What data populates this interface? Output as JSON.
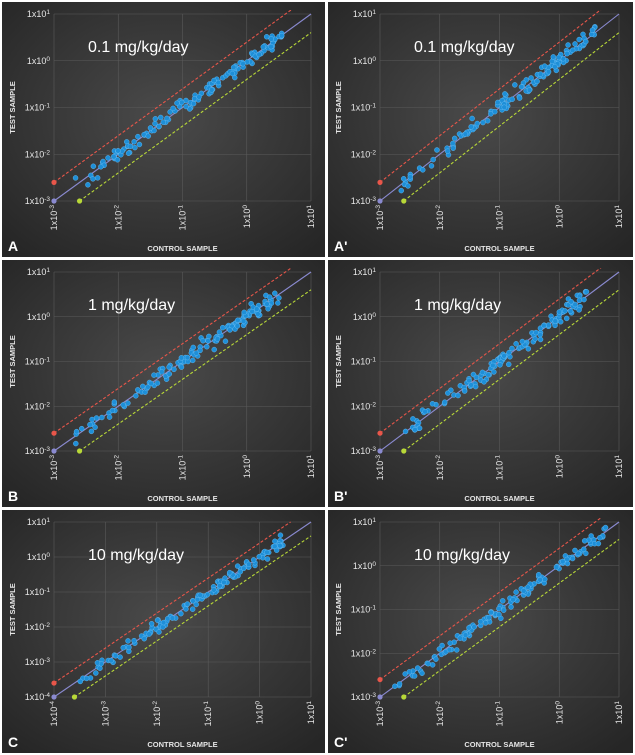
{
  "figure": {
    "x_axis_label": "CONTROL SAMPLE",
    "y_axis_label": "TEST SAMPLE"
  },
  "colors": {
    "background": "#3a3a3a",
    "point": "#1e8fd8",
    "upper_line": "#e8564a",
    "identity_line": "#8a8ad0",
    "lower_line": "#b8d838"
  },
  "chart_data": [
    {
      "type": "scatter",
      "panel_label": "A",
      "dose_label": "0.1 mg/kg/day",
      "x_scale": "log",
      "y_scale": "log",
      "x_ticks": [
        "1x10-3",
        "1x10-2",
        "1x10-1",
        "1x100",
        "1x101"
      ],
      "y_ticks": [
        "1x10-3",
        "1x10-2",
        "1x10-1",
        "1x100",
        "1x101"
      ],
      "xlim": [
        0.001,
        10
      ],
      "ylim": [
        0.001,
        10
      ],
      "guide_lines": [
        {
          "name": "upper",
          "points": [
            [
              0.001,
              0.0025
            ],
            [
              5,
              12.5
            ]
          ]
        },
        {
          "name": "identity",
          "points": [
            [
              0.001,
              0.001
            ],
            [
              10,
              10
            ]
          ]
        },
        {
          "name": "lower",
          "points": [
            [
              0.0025,
              0.001
            ],
            [
              10,
              4
            ]
          ]
        }
      ],
      "n_points": 130,
      "x_range": [
        0.002,
        3.5
      ],
      "ratio": 1.0
    },
    {
      "type": "scatter",
      "panel_label": "A'",
      "dose_label": "0.1 mg/kg/day",
      "x_scale": "log",
      "y_scale": "log",
      "x_ticks": [
        "1x10-3",
        "1x10-2",
        "1x10-1",
        "1x100",
        "1x101"
      ],
      "y_ticks": [
        "1x10-3",
        "1x10-2",
        "1x10-1",
        "1x100",
        "1x101"
      ],
      "xlim": [
        0.001,
        10
      ],
      "ylim": [
        0.001,
        10
      ],
      "guide_lines": [
        {
          "name": "upper",
          "points": [
            [
              0.001,
              0.0025
            ],
            [
              5,
              12.5
            ]
          ]
        },
        {
          "name": "identity",
          "points": [
            [
              0.001,
              0.001
            ],
            [
              10,
              10
            ]
          ]
        },
        {
          "name": "lower",
          "points": [
            [
              0.0025,
              0.001
            ],
            [
              10,
              4
            ]
          ]
        }
      ],
      "n_points": 130,
      "x_range": [
        0.0015,
        4
      ],
      "ratio": 1.0
    },
    {
      "type": "scatter",
      "panel_label": "B",
      "dose_label": "1 mg/kg/day",
      "x_scale": "log",
      "y_scale": "log",
      "x_ticks": [
        "1x10-3",
        "1x10-2",
        "1x10-1",
        "1x100",
        "1x101"
      ],
      "y_ticks": [
        "1x10-3",
        "1x10-2",
        "1x10-1",
        "1x100",
        "1x101"
      ],
      "xlim": [
        0.001,
        10
      ],
      "ylim": [
        0.001,
        10
      ],
      "guide_lines": [
        {
          "name": "upper",
          "points": [
            [
              0.001,
              0.0025
            ],
            [
              5,
              12.5
            ]
          ]
        },
        {
          "name": "identity",
          "points": [
            [
              0.001,
              0.001
            ],
            [
              10,
              10
            ]
          ]
        },
        {
          "name": "lower",
          "points": [
            [
              0.0025,
              0.001
            ],
            [
              10,
              4
            ]
          ]
        }
      ],
      "n_points": 130,
      "x_range": [
        0.002,
        3.5
      ],
      "ratio": 1.0
    },
    {
      "type": "scatter",
      "panel_label": "B'",
      "dose_label": "1 mg/kg/day",
      "x_scale": "log",
      "y_scale": "log",
      "x_ticks": [
        "1x10-3",
        "1x10-2",
        "1x10-1",
        "1x100",
        "1x101"
      ],
      "y_ticks": [
        "1x10-3",
        "1x10-2",
        "1x10-1",
        "1x100",
        "1x101"
      ],
      "xlim": [
        0.001,
        10
      ],
      "ylim": [
        0.001,
        10
      ],
      "guide_lines": [
        {
          "name": "upper",
          "points": [
            [
              0.001,
              0.0025
            ],
            [
              5,
              12.5
            ]
          ]
        },
        {
          "name": "identity",
          "points": [
            [
              0.001,
              0.001
            ],
            [
              10,
              10
            ]
          ]
        },
        {
          "name": "lower",
          "points": [
            [
              0.0025,
              0.001
            ],
            [
              10,
              4
            ]
          ]
        }
      ],
      "n_points": 130,
      "x_range": [
        0.0015,
        3
      ],
      "ratio": 1.0
    },
    {
      "type": "scatter",
      "panel_label": "C",
      "dose_label": "10 mg/kg/day",
      "x_scale": "log",
      "y_scale": "log",
      "x_ticks": [
        "1x10-4",
        "1x10-3",
        "1x10-2",
        "1x10-1",
        "1x100",
        "1x101"
      ],
      "y_ticks": [
        "1x10-4",
        "1x10-3",
        "1x10-2",
        "1x10-1",
        "1x100",
        "1x101"
      ],
      "xlim": [
        0.0001,
        10
      ],
      "ylim": [
        0.0001,
        10
      ],
      "guide_lines": [
        {
          "name": "upper",
          "points": [
            [
              0.0001,
              0.00025
            ],
            [
              4,
              10
            ]
          ]
        },
        {
          "name": "identity",
          "points": [
            [
              0.0001,
              0.0001
            ],
            [
              10,
              10
            ]
          ]
        },
        {
          "name": "lower",
          "points": [
            [
              0.00025,
              0.0001
            ],
            [
              10,
              4
            ]
          ]
        }
      ],
      "n_points": 130,
      "x_range": [
        0.0003,
        3
      ],
      "ratio": 1.0
    },
    {
      "type": "scatter",
      "panel_label": "C'",
      "dose_label": "10 mg/kg/day",
      "x_scale": "log",
      "y_scale": "log",
      "x_ticks": [
        "1x10-3",
        "1x10-2",
        "1x10-1",
        "1x100",
        "1x101"
      ],
      "y_ticks": [
        "1x10-3",
        "1x10-2",
        "1x10-1",
        "1x100",
        "1x101"
      ],
      "xlim": [
        0.001,
        10
      ],
      "ylim": [
        0.001,
        10
      ],
      "guide_lines": [
        {
          "name": "upper",
          "points": [
            [
              0.001,
              0.0025
            ],
            [
              5,
              12.5
            ]
          ]
        },
        {
          "name": "identity",
          "points": [
            [
              0.001,
              0.001
            ],
            [
              10,
              10
            ]
          ]
        },
        {
          "name": "lower",
          "points": [
            [
              0.0025,
              0.001
            ],
            [
              10,
              4
            ]
          ]
        }
      ],
      "n_points": 130,
      "x_range": [
        0.0015,
        6
      ],
      "ratio": 1.0
    }
  ]
}
